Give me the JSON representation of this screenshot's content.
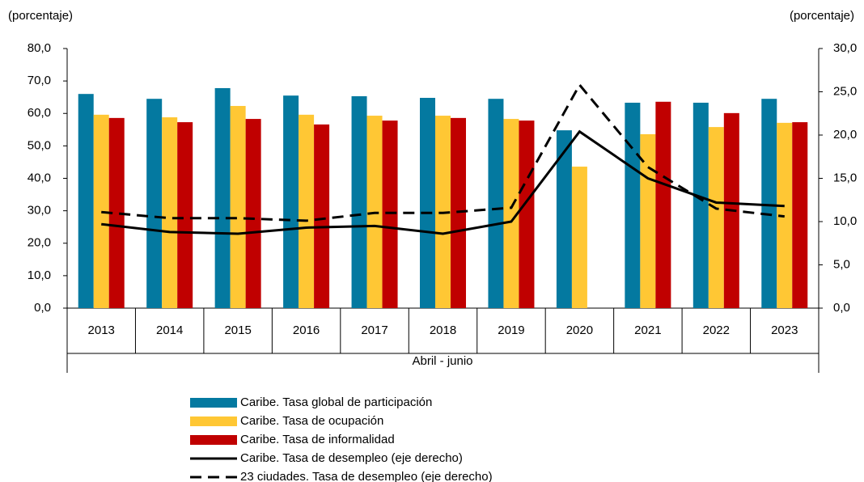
{
  "chart_data": {
    "type": "bar",
    "y_label": "(porcentaje)",
    "y2_label": "(porcentaje)",
    "x_label": "Abril - junio",
    "categories": [
      "2013",
      "2014",
      "2015",
      "2016",
      "2017",
      "2018",
      "2019",
      "2020",
      "2021",
      "2022",
      "2023"
    ],
    "series": [
      {
        "name": "Caribe. Tasa global de participación",
        "type": "bar",
        "color": "#0479a0",
        "values": [
          66.0,
          64.5,
          67.8,
          65.5,
          65.3,
          64.8,
          64.5,
          54.8,
          63.3,
          63.3,
          64.5
        ]
      },
      {
        "name": "Caribe. Tasa de ocupación",
        "type": "bar",
        "color": "#ffc734",
        "values": [
          59.6,
          58.8,
          62.3,
          59.6,
          59.3,
          59.3,
          58.3,
          43.6,
          53.6,
          55.8,
          57.1
        ]
      },
      {
        "name": "Caribe. Tasa de informalidad",
        "type": "bar",
        "color": "#c00000",
        "values": [
          58.6,
          57.3,
          58.3,
          56.6,
          57.8,
          58.6,
          57.8,
          null,
          63.6,
          60.1,
          57.3
        ]
      },
      {
        "name": "Caribe. Tasa de desempleo (eje derecho)",
        "type": "line",
        "axis": "y2",
        "dashed": false,
        "color": "#000000",
        "values": [
          9.7,
          8.8,
          8.6,
          9.3,
          9.5,
          8.6,
          10.0,
          20.4,
          15.0,
          12.2,
          11.8
        ]
      },
      {
        "name": "23 ciudades. Tasa de desempleo (eje derecho)",
        "type": "line",
        "axis": "y2",
        "dashed": true,
        "color": "#000000",
        "values": [
          11.1,
          10.4,
          10.4,
          10.1,
          11.0,
          11.0,
          11.6,
          25.8,
          16.3,
          11.5,
          10.6
        ]
      }
    ],
    "ylim": [
      0,
      80
    ],
    "yticks": [
      {
        "value": 0,
        "label": "0,0"
      },
      {
        "value": 10,
        "label": "10,0"
      },
      {
        "value": 20,
        "label": "20,0"
      },
      {
        "value": 30,
        "label": "30,0"
      },
      {
        "value": 40,
        "label": "40,0"
      },
      {
        "value": 50,
        "label": "50,0"
      },
      {
        "value": 60,
        "label": "60,0"
      },
      {
        "value": 70,
        "label": "70,0"
      },
      {
        "value": 80,
        "label": "80,0"
      }
    ],
    "y2lim": [
      0,
      30
    ],
    "y2ticks": [
      {
        "value": 0,
        "label": "0,0"
      },
      {
        "value": 5,
        "label": "5,0"
      },
      {
        "value": 10,
        "label": "10,0"
      },
      {
        "value": 15,
        "label": "15,0"
      },
      {
        "value": 20,
        "label": "20,0"
      },
      {
        "value": 25,
        "label": "25,0"
      },
      {
        "value": 30,
        "label": "30,0"
      }
    ],
    "grid": false
  }
}
